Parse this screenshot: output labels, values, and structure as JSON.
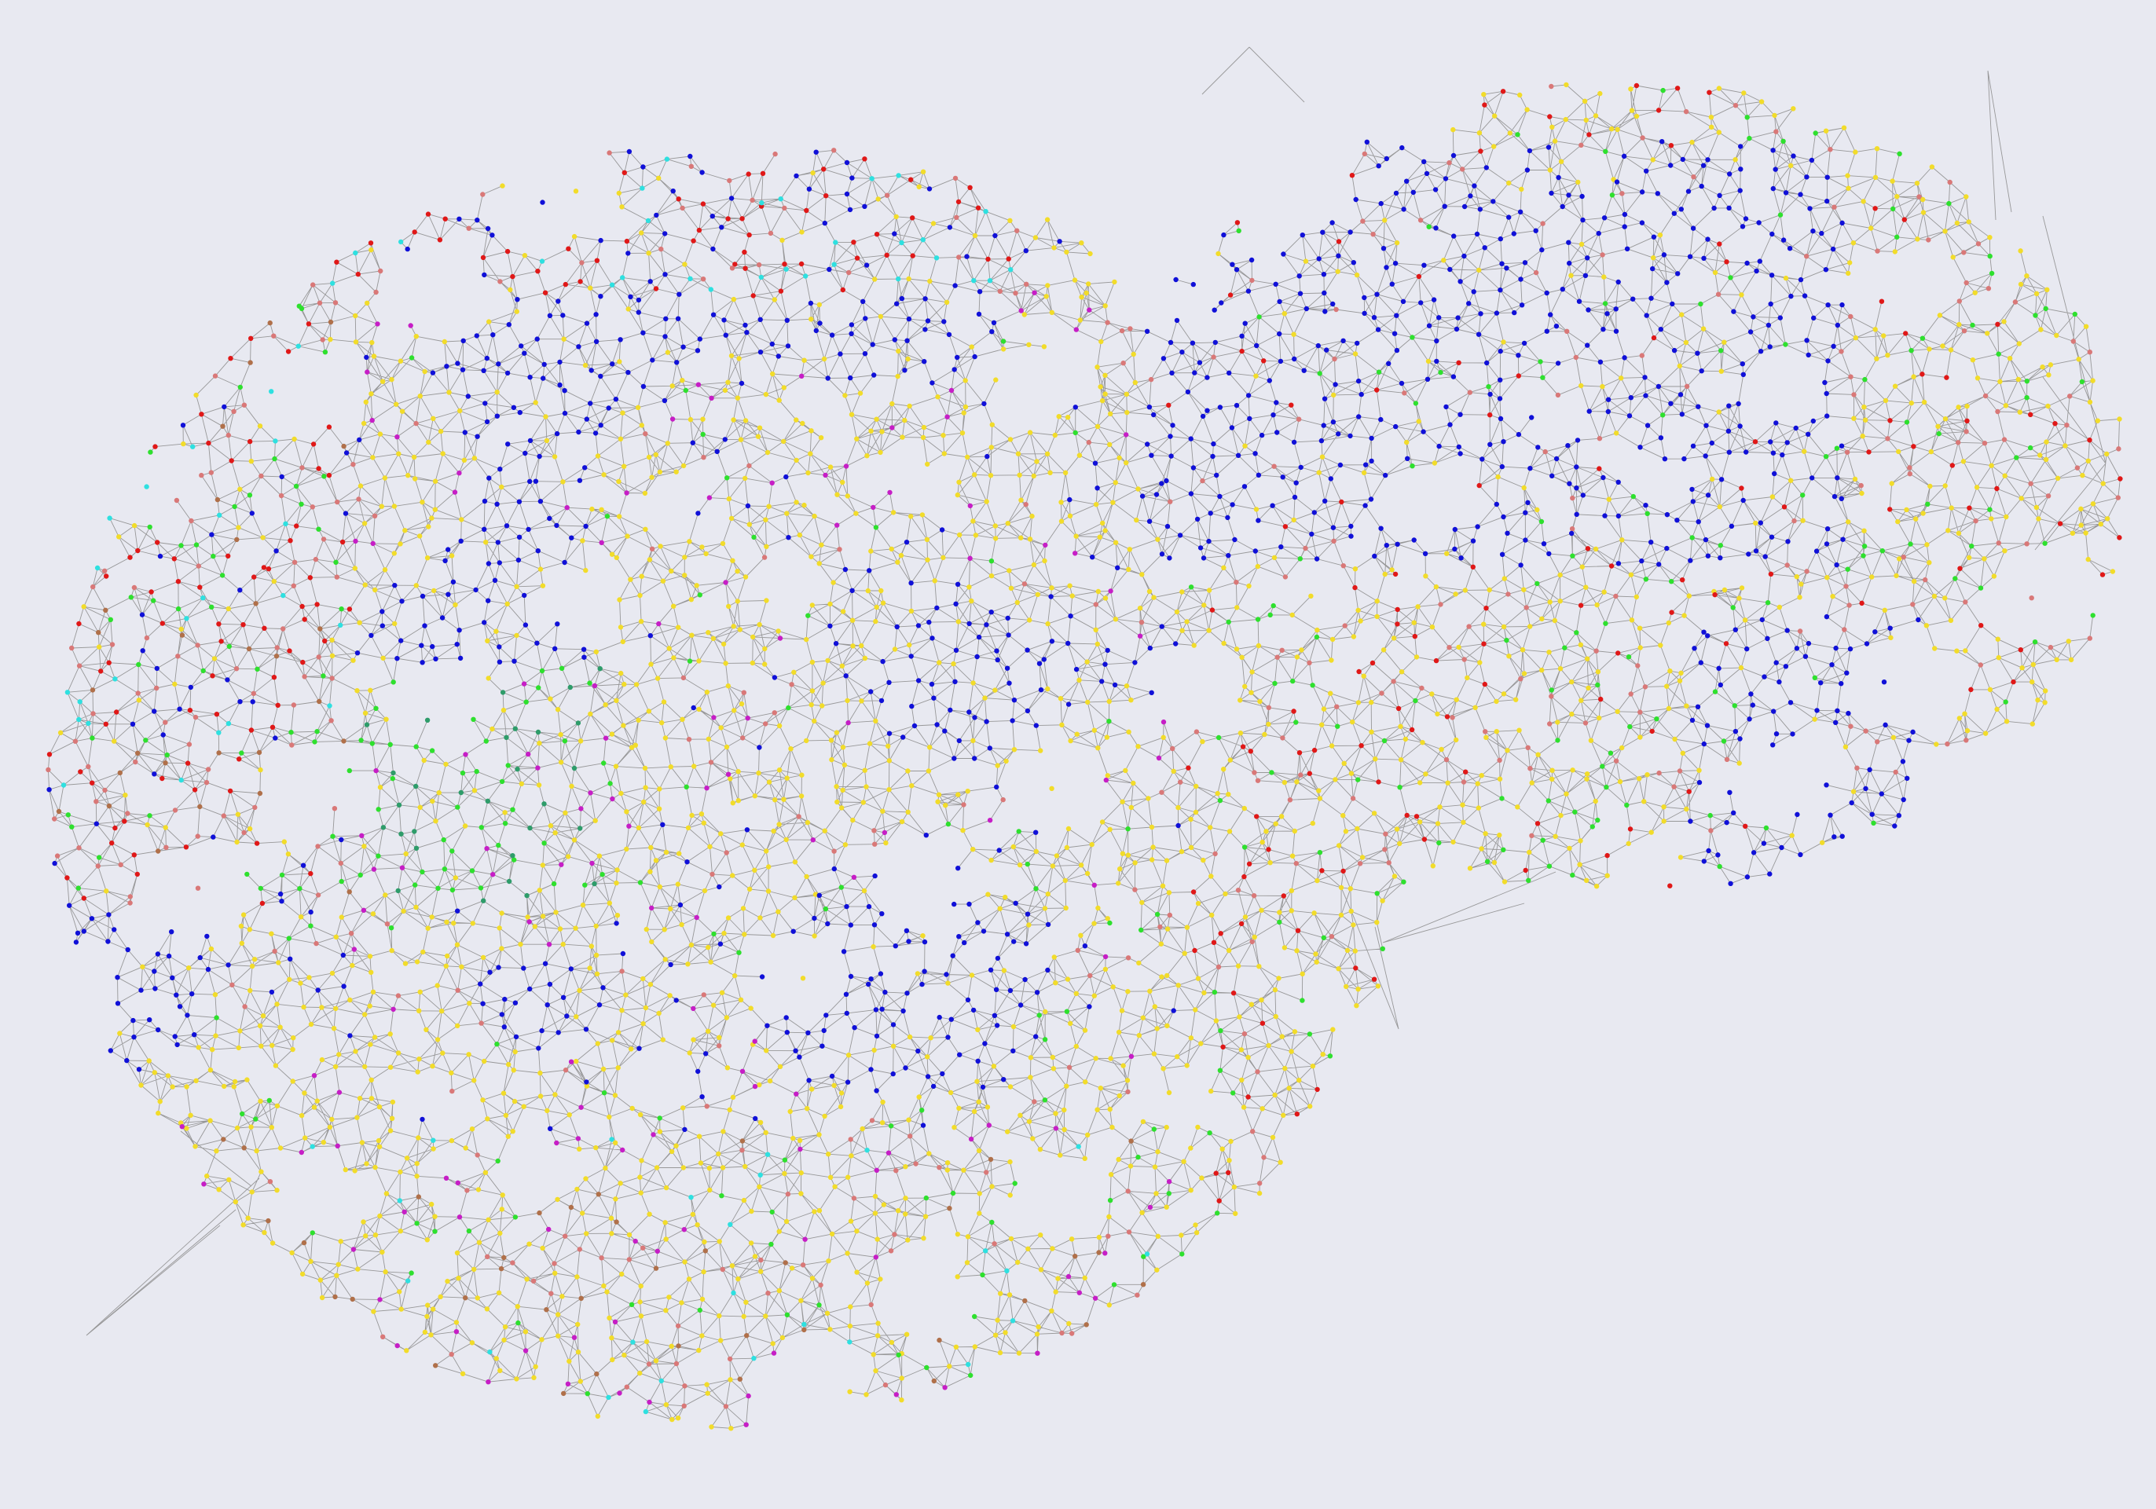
{
  "diagram": {
    "kind": "node-link network graph",
    "labels_shown": false,
    "background_color": "#e8e9f1",
    "edge_color": "#8a8a8a",
    "node_colors": {
      "blue": "#1010d8",
      "yellow": "#f2dc2a",
      "red": "#e01818",
      "pink": "#d97878",
      "green": "#2ee02e",
      "sea-green": "#2e9c6a",
      "cyan": "#2ee0e0",
      "magenta": "#c61ec6",
      "brown": "#b0704a"
    }
  }
}
